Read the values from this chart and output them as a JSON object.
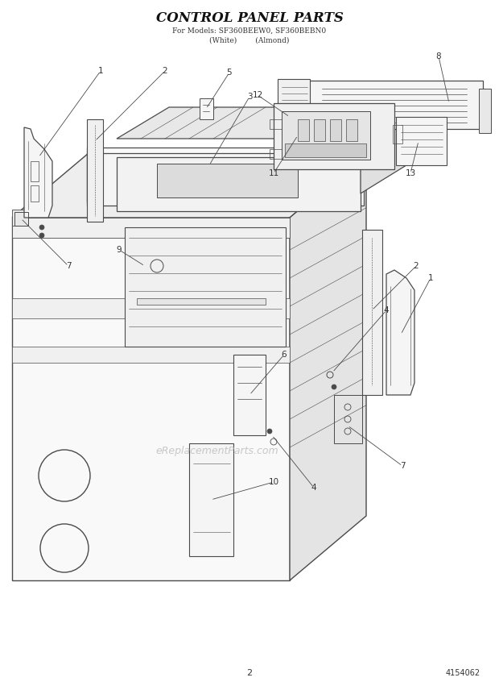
{
  "title": "CONTROL PANEL PARTS",
  "subtitle_line1": "For Models: SF360BEEW0, SF360BEBN0",
  "subtitle_line2": "(White)        (Almond)",
  "page_number": "2",
  "part_number": "4154062",
  "background_color": "#ffffff",
  "line_color": "#4a4a4a",
  "text_color": "#333333",
  "title_color": "#111111",
  "watermark": "eReplacementParts.com",
  "watermark_color": "#bbbbbb",
  "face_colors": {
    "front": "#f9f9f9",
    "top": "#eeeeee",
    "right": "#e4e4e4",
    "dark": "#d8d8d8"
  }
}
